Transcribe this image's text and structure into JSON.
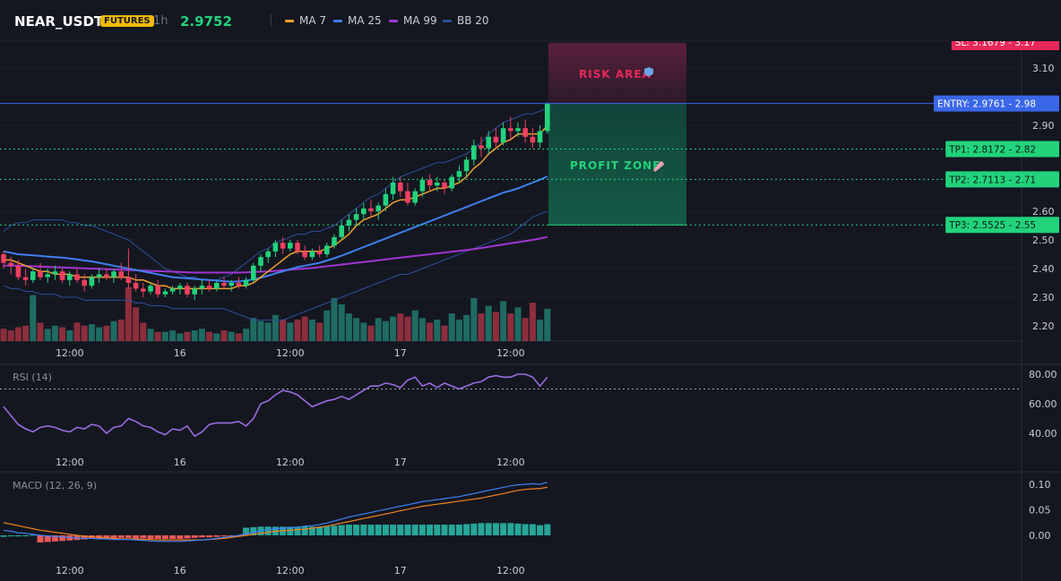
{
  "header": {
    "symbol": "NEAR_USDT",
    "badge": "FUTURES",
    "timeframe": "1h",
    "price": "2.9752",
    "legend": [
      {
        "label": "MA 7",
        "color": "#f0a030"
      },
      {
        "label": "MA 25",
        "color": "#3f7ff0"
      },
      {
        "label": "MA 99",
        "color": "#a035d0"
      },
      {
        "label": "BB 20",
        "color": "#2f4e9a"
      }
    ]
  },
  "colors": {
    "up": "#26a69a",
    "up_bright": "#22d37c",
    "down": "#ef4060",
    "vol_up": "#1f6b62",
    "vol_down": "#8c2e3e",
    "entry": "#3a67e8",
    "tp": "#22d37c",
    "risk": "#e8285a",
    "rsi": "#9a6ce0",
    "macd": "#3f7ff0",
    "signal": "#f08020"
  },
  "chart_data": [
    {
      "type": "candlestick",
      "price_ticks": [
        "3.10",
        "2.90",
        "2.60",
        "2.50",
        "2.40",
        "2.30",
        "2.20"
      ],
      "x_ticks": [
        "12:00",
        "16",
        "12:00",
        "17",
        "12:00"
      ],
      "ohlc": [
        [
          2.45,
          2.46,
          2.4,
          2.42
        ],
        [
          2.42,
          2.44,
          2.38,
          2.41
        ],
        [
          2.41,
          2.43,
          2.36,
          2.37
        ],
        [
          2.37,
          2.4,
          2.34,
          2.36
        ],
        [
          2.36,
          2.4,
          2.35,
          2.39
        ],
        [
          2.39,
          2.42,
          2.36,
          2.37
        ],
        [
          2.37,
          2.4,
          2.35,
          2.38
        ],
        [
          2.38,
          2.41,
          2.36,
          2.39
        ],
        [
          2.39,
          2.4,
          2.35,
          2.36
        ],
        [
          2.36,
          2.39,
          2.34,
          2.38
        ],
        [
          2.38,
          2.4,
          2.35,
          2.36
        ],
        [
          2.36,
          2.38,
          2.32,
          2.34
        ],
        [
          2.34,
          2.38,
          2.33,
          2.37
        ],
        [
          2.37,
          2.4,
          2.35,
          2.38
        ],
        [
          2.38,
          2.4,
          2.36,
          2.37
        ],
        [
          2.37,
          2.4,
          2.35,
          2.39
        ],
        [
          2.39,
          2.42,
          2.36,
          2.37
        ],
        [
          2.37,
          2.47,
          2.33,
          2.35
        ],
        [
          2.35,
          2.38,
          2.32,
          2.33
        ],
        [
          2.33,
          2.35,
          2.3,
          2.32
        ],
        [
          2.32,
          2.35,
          2.31,
          2.34
        ],
        [
          2.34,
          2.36,
          2.3,
          2.31
        ],
        [
          2.31,
          2.33,
          2.3,
          2.32
        ],
        [
          2.32,
          2.34,
          2.31,
          2.33
        ],
        [
          2.33,
          2.35,
          2.31,
          2.34
        ],
        [
          2.34,
          2.35,
          2.3,
          2.31
        ],
        [
          2.31,
          2.34,
          2.29,
          2.33
        ],
        [
          2.33,
          2.36,
          2.31,
          2.34
        ],
        [
          2.34,
          2.36,
          2.32,
          2.33
        ],
        [
          2.33,
          2.36,
          2.32,
          2.35
        ],
        [
          2.35,
          2.37,
          2.33,
          2.34
        ],
        [
          2.34,
          2.36,
          2.32,
          2.35
        ],
        [
          2.35,
          2.37,
          2.33,
          2.34
        ],
        [
          2.34,
          2.37,
          2.33,
          2.36
        ],
        [
          2.36,
          2.42,
          2.35,
          2.41
        ],
        [
          2.41,
          2.45,
          2.39,
          2.44
        ],
        [
          2.44,
          2.47,
          2.42,
          2.46
        ],
        [
          2.46,
          2.5,
          2.44,
          2.49
        ],
        [
          2.49,
          2.51,
          2.45,
          2.47
        ],
        [
          2.47,
          2.5,
          2.46,
          2.49
        ],
        [
          2.49,
          2.5,
          2.45,
          2.46
        ],
        [
          2.46,
          2.48,
          2.43,
          2.44
        ],
        [
          2.44,
          2.47,
          2.43,
          2.46
        ],
        [
          2.46,
          2.48,
          2.44,
          2.45
        ],
        [
          2.45,
          2.49,
          2.44,
          2.48
        ],
        [
          2.48,
          2.52,
          2.47,
          2.51
        ],
        [
          2.51,
          2.57,
          2.5,
          2.55
        ],
        [
          2.55,
          2.59,
          2.53,
          2.57
        ],
        [
          2.57,
          2.61,
          2.55,
          2.59
        ],
        [
          2.59,
          2.63,
          2.57,
          2.61
        ],
        [
          2.61,
          2.64,
          2.58,
          2.6
        ],
        [
          2.6,
          2.63,
          2.57,
          2.62
        ],
        [
          2.62,
          2.68,
          2.6,
          2.66
        ],
        [
          2.66,
          2.72,
          2.64,
          2.7
        ],
        [
          2.7,
          2.72,
          2.65,
          2.67
        ],
        [
          2.67,
          2.7,
          2.62,
          2.63
        ],
        [
          2.63,
          2.68,
          2.62,
          2.67
        ],
        [
          2.67,
          2.72,
          2.65,
          2.71
        ],
        [
          2.71,
          2.73,
          2.67,
          2.69
        ],
        [
          2.69,
          2.72,
          2.67,
          2.7
        ],
        [
          2.7,
          2.71,
          2.66,
          2.68
        ],
        [
          2.68,
          2.73,
          2.67,
          2.72
        ],
        [
          2.72,
          2.76,
          2.7,
          2.74
        ],
        [
          2.74,
          2.79,
          2.72,
          2.78
        ],
        [
          2.78,
          2.85,
          2.76,
          2.83
        ],
        [
          2.83,
          2.86,
          2.79,
          2.82
        ],
        [
          2.82,
          2.88,
          2.8,
          2.86
        ],
        [
          2.86,
          2.89,
          2.82,
          2.84
        ],
        [
          2.84,
          2.91,
          2.83,
          2.89
        ],
        [
          2.89,
          2.93,
          2.85,
          2.88
        ],
        [
          2.88,
          2.91,
          2.86,
          2.89
        ],
        [
          2.89,
          2.92,
          2.84,
          2.86
        ],
        [
          2.86,
          2.89,
          2.82,
          2.84
        ],
        [
          2.84,
          2.9,
          2.82,
          2.88
        ],
        [
          2.88,
          2.98,
          2.87,
          2.9752
        ]
      ],
      "volume": [
        8,
        7,
        9,
        10,
        30,
        12,
        8,
        10,
        9,
        7,
        12,
        10,
        11,
        9,
        10,
        13,
        14,
        35,
        22,
        12,
        8,
        6,
        6,
        7,
        5,
        6,
        7,
        8,
        6,
        5,
        7,
        6,
        5,
        8,
        15,
        13,
        12,
        17,
        14,
        12,
        14,
        16,
        14,
        12,
        20,
        28,
        24,
        18,
        15,
        12,
        10,
        15,
        13,
        16,
        18,
        16,
        20,
        15,
        12,
        14,
        10,
        18,
        14,
        17,
        28,
        18,
        23,
        19,
        26,
        18,
        22,
        15,
        25,
        14,
        21
      ],
      "ma7": [
        2.43,
        2.43,
        2.42,
        2.41,
        2.4,
        2.39,
        2.39,
        2.38,
        2.38,
        2.38,
        2.37,
        2.37,
        2.37,
        2.37,
        2.37,
        2.37,
        2.37,
        2.37,
        2.36,
        2.36,
        2.35,
        2.34,
        2.34,
        2.33,
        2.33,
        2.33,
        2.33,
        2.33,
        2.33,
        2.33,
        2.33,
        2.33,
        2.34,
        2.34,
        2.35,
        2.37,
        2.39,
        2.41,
        2.43,
        2.45,
        2.46,
        2.46,
        2.46,
        2.46,
        2.47,
        2.48,
        2.5,
        2.52,
        2.55,
        2.57,
        2.58,
        2.59,
        2.61,
        2.63,
        2.64,
        2.64,
        2.65,
        2.66,
        2.67,
        2.68,
        2.68,
        2.69,
        2.7,
        2.72,
        2.75,
        2.77,
        2.8,
        2.82,
        2.84,
        2.85,
        2.87,
        2.87,
        2.87,
        2.87,
        2.9
      ],
      "ma25": [
        2.46,
        2.455,
        2.45,
        2.448,
        2.446,
        2.444,
        2.442,
        2.44,
        2.438,
        2.435,
        2.432,
        2.428,
        2.425,
        2.42,
        2.415,
        2.41,
        2.405,
        2.4,
        2.395,
        2.39,
        2.385,
        2.38,
        2.375,
        2.37,
        2.368,
        2.366,
        2.364,
        2.362,
        2.36,
        2.358,
        2.356,
        2.354,
        2.355,
        2.358,
        2.362,
        2.368,
        2.375,
        2.383,
        2.39,
        2.398,
        2.405,
        2.41,
        2.415,
        2.42,
        2.428,
        2.436,
        2.445,
        2.455,
        2.465,
        2.475,
        2.485,
        2.495,
        2.505,
        2.515,
        2.525,
        2.535,
        2.545,
        2.555,
        2.565,
        2.575,
        2.585,
        2.595,
        2.605,
        2.615,
        2.625,
        2.635,
        2.645,
        2.655,
        2.665,
        2.672,
        2.68,
        2.69,
        2.7,
        2.71,
        2.722
      ],
      "ma99": [
        2.41,
        2.41,
        2.41,
        2.409,
        2.408,
        2.407,
        2.406,
        2.405,
        2.404,
        2.403,
        2.402,
        2.401,
        2.4,
        2.399,
        2.398,
        2.397,
        2.396,
        2.395,
        2.394,
        2.393,
        2.392,
        2.391,
        2.39,
        2.389,
        2.388,
        2.387,
        2.386,
        2.386,
        2.386,
        2.386,
        2.386,
        2.386,
        2.386,
        2.387,
        2.388,
        2.389,
        2.39,
        2.392,
        2.394,
        2.396,
        2.398,
        2.4,
        2.402,
        2.405,
        2.408,
        2.411,
        2.414,
        2.417,
        2.42,
        2.423,
        2.426,
        2.429,
        2.432,
        2.435,
        2.438,
        2.441,
        2.444,
        2.447,
        2.45,
        2.453,
        2.456,
        2.459,
        2.462,
        2.465,
        2.468,
        2.472,
        2.476,
        2.48,
        2.484,
        2.488,
        2.492,
        2.496,
        2.5,
        2.505,
        2.51
      ],
      "bb_upper": [
        2.53,
        2.55,
        2.56,
        2.56,
        2.57,
        2.57,
        2.57,
        2.57,
        2.57,
        2.56,
        2.56,
        2.55,
        2.55,
        2.54,
        2.53,
        2.52,
        2.51,
        2.5,
        2.48,
        2.46,
        2.44,
        2.42,
        2.4,
        2.39,
        2.38,
        2.37,
        2.37,
        2.36,
        2.36,
        2.36,
        2.37,
        2.38,
        2.4,
        2.42,
        2.44,
        2.46,
        2.47,
        2.49,
        2.5,
        2.51,
        2.52,
        2.52,
        2.53,
        2.53,
        2.54,
        2.55,
        2.57,
        2.59,
        2.61,
        2.63,
        2.65,
        2.66,
        2.68,
        2.7,
        2.72,
        2.73,
        2.74,
        2.75,
        2.76,
        2.77,
        2.77,
        2.78,
        2.79,
        2.8,
        2.82,
        2.84,
        2.87,
        2.89,
        2.91,
        2.92,
        2.93,
        2.94,
        2.94,
        2.95,
        2.96
      ],
      "bb_lower": [
        2.34,
        2.33,
        2.33,
        2.32,
        2.32,
        2.31,
        2.31,
        2.31,
        2.3,
        2.3,
        2.3,
        2.29,
        2.29,
        2.29,
        2.29,
        2.29,
        2.29,
        2.29,
        2.28,
        2.28,
        2.27,
        2.27,
        2.27,
        2.26,
        2.26,
        2.26,
        2.26,
        2.26,
        2.26,
        2.26,
        2.26,
        2.25,
        2.24,
        2.23,
        2.22,
        2.22,
        2.22,
        2.22,
        2.22,
        2.23,
        2.24,
        2.25,
        2.26,
        2.27,
        2.28,
        2.29,
        2.3,
        2.31,
        2.32,
        2.33,
        2.34,
        2.35,
        2.36,
        2.37,
        2.38,
        2.38,
        2.39,
        2.4,
        2.41,
        2.42,
        2.43,
        2.44,
        2.45,
        2.46,
        2.47,
        2.48,
        2.49,
        2.5,
        2.51,
        2.52,
        2.54,
        2.56,
        2.58,
        2.59,
        2.6
      ],
      "zones": {
        "risk_area_label": "RISK AREA",
        "profit_zone_label": "PROFIT ZONE",
        "entry": 2.9761,
        "tp1": 2.8172,
        "tp2": 2.7113,
        "tp3": 2.5525,
        "stop_top": 3.17
      },
      "labels": {
        "entry": "ENTRY: 2.9761 - 2.98",
        "tp1": "TP1: 2.8172 - 2.82",
        "tp2": "TP2: 2.7113 - 2.71",
        "tp3": "TP3: 2.5525 - 2.55",
        "sl": "SL: 3.1679 - 3.17"
      }
    },
    {
      "type": "line",
      "title": "RSI (14)",
      "y_ticks": [
        "80.00",
        "60.00",
        "40.00"
      ],
      "threshold": 70,
      "values": [
        58,
        52,
        46,
        43,
        41,
        44,
        45,
        44,
        42,
        41,
        44,
        43,
        46,
        45,
        40,
        44,
        45,
        50,
        48,
        45,
        44,
        41,
        39,
        43,
        42,
        45,
        38,
        41,
        46,
        47,
        47,
        47,
        48,
        45,
        50,
        60,
        62,
        66,
        69,
        68,
        66,
        62,
        58,
        60,
        62,
        63,
        65,
        63,
        66,
        69,
        72,
        72,
        74,
        73,
        71,
        76,
        78,
        72,
        74,
        71,
        74,
        72,
        70,
        72,
        74,
        75,
        78,
        79,
        78,
        78,
        80,
        80,
        78,
        72,
        78
      ],
      "x_ticks": [
        "12:00",
        "16",
        "12:00",
        "17",
        "12:00"
      ]
    },
    {
      "type": "line",
      "title": "MACD (12, 26, 9)",
      "y_ticks": [
        "0.10",
        "0.05",
        "0.00"
      ],
      "macd": [
        0.01,
        0.008,
        0.005,
        0.004,
        0.002,
        0.0,
        -0.001,
        -0.002,
        -0.003,
        -0.004,
        -0.005,
        -0.006,
        -0.006,
        -0.007,
        -0.007,
        -0.008,
        -0.008,
        -0.008,
        -0.009,
        -0.01,
        -0.011,
        -0.012,
        -0.012,
        -0.012,
        -0.012,
        -0.011,
        -0.01,
        -0.009,
        -0.008,
        -0.006,
        -0.004,
        -0.002,
        0.0,
        0.003,
        0.006,
        0.009,
        0.011,
        0.013,
        0.014,
        0.015,
        0.016,
        0.018,
        0.019,
        0.021,
        0.024,
        0.028,
        0.032,
        0.036,
        0.039,
        0.042,
        0.045,
        0.048,
        0.051,
        0.054,
        0.057,
        0.06,
        0.063,
        0.066,
        0.068,
        0.07,
        0.072,
        0.074,
        0.076,
        0.079,
        0.082,
        0.085,
        0.088,
        0.091,
        0.094,
        0.097,
        0.099,
        0.1,
        0.101,
        0.1,
        0.104
      ],
      "signal": [
        0.025,
        0.022,
        0.019,
        0.016,
        0.013,
        0.01,
        0.008,
        0.006,
        0.004,
        0.002,
        0.0,
        -0.002,
        -0.003,
        -0.004,
        -0.005,
        -0.006,
        -0.007,
        -0.007,
        -0.007,
        -0.008,
        -0.008,
        -0.009,
        -0.009,
        -0.009,
        -0.009,
        -0.009,
        -0.009,
        -0.009,
        -0.008,
        -0.007,
        -0.006,
        -0.004,
        -0.002,
        0.0,
        0.002,
        0.004,
        0.006,
        0.008,
        0.009,
        0.01,
        0.011,
        0.012,
        0.014,
        0.016,
        0.018,
        0.021,
        0.024,
        0.027,
        0.03,
        0.033,
        0.036,
        0.039,
        0.042,
        0.045,
        0.048,
        0.051,
        0.054,
        0.057,
        0.059,
        0.061,
        0.063,
        0.065,
        0.067,
        0.069,
        0.071,
        0.073,
        0.076,
        0.079,
        0.082,
        0.085,
        0.088,
        0.09,
        0.091,
        0.092,
        0.094
      ],
      "x_ticks": [
        "12:00",
        "16",
        "12:00",
        "17",
        "12:00"
      ]
    }
  ]
}
